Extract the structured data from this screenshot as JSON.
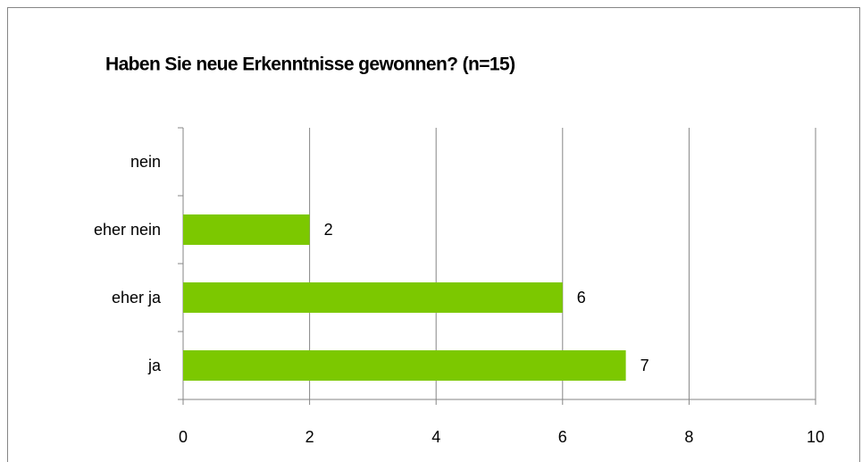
{
  "chart_data": {
    "type": "bar",
    "orientation": "horizontal",
    "title": "Haben Sie neue Erkenntnisse gewonnen? (n=15)",
    "categories": [
      "nein",
      "eher nein",
      "eher ja",
      "ja"
    ],
    "values": [
      0,
      2,
      6,
      7
    ],
    "color": "#7cc800",
    "xlim": [
      0,
      10
    ],
    "xticks": [
      0,
      2,
      4,
      6,
      8,
      10
    ],
    "grid": true
  }
}
